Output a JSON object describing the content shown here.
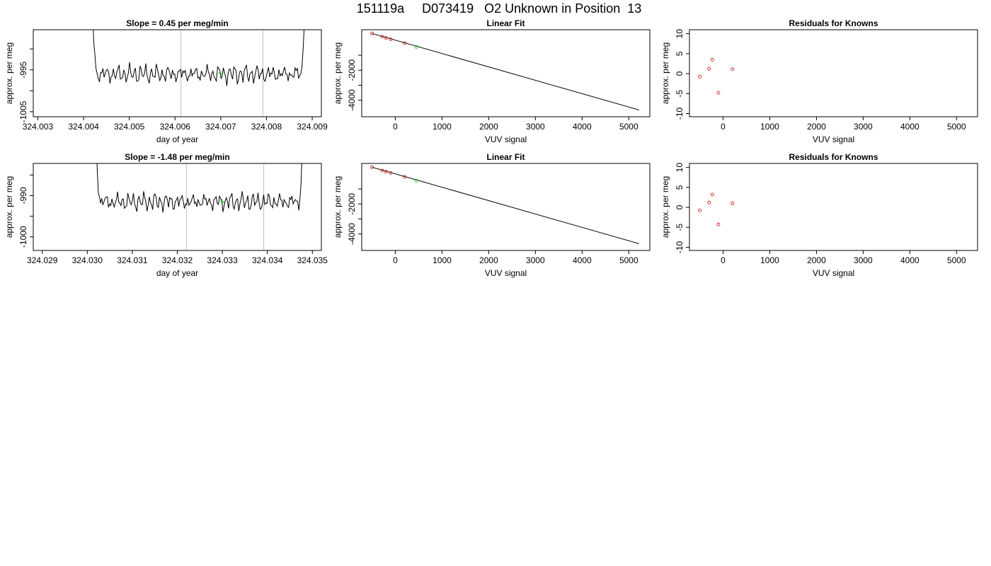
{
  "page_title": "151119a     D073419   O2 Unknown in Position  13",
  "colors": {
    "trace": "#000000",
    "green": "#00cc00",
    "red": "#cc0000",
    "vline": "#bfbfbf"
  },
  "chart_data": [
    {
      "type": "line",
      "title": "Slope =  0.45  per meg/min",
      "xlabel": "day of year",
      "ylabel": "approx. per meg",
      "xlim": [
        324.0029,
        324.0092
      ],
      "ylim": [
        -1006.2,
        -985.4
      ],
      "xticks": [
        324.003,
        324.004,
        324.005,
        324.006,
        324.007,
        324.008,
        324.009
      ],
      "xtick_labels": [
        "324.003",
        "324.004",
        "324.005",
        "324.006",
        "324.007",
        "324.008",
        "324.009"
      ],
      "yticks": [
        -1005,
        -1000,
        -995,
        -990
      ],
      "ytick_labels": [
        "-1005",
        "",
        "-995",
        ""
      ],
      "grid": false,
      "vlines": [
        324.00613,
        324.00792
      ],
      "trace": {
        "x_start": 324.00412,
        "x_end": 324.00893,
        "baseline": -996.0,
        "amplitude": 1.6,
        "x_cut": [
          324.0043,
          324.00875
        ],
        "x_rise": [
          324.00413,
          324.00888
        ]
      },
      "highlight": {
        "x": [
          324.007
        ],
        "y": [
          -995.9
        ]
      }
    },
    {
      "type": "scatter",
      "title": "Linear Fit",
      "xlabel": "VUV signal",
      "ylabel": "approx. per meg",
      "xlim": [
        -720,
        5450
      ],
      "ylim": [
        -5100,
        700
      ],
      "xticks": [
        0,
        1000,
        2000,
        3000,
        4000,
        5000
      ],
      "xtick_labels": [
        "0",
        "1000",
        "2000",
        "3000",
        "4000",
        "5000"
      ],
      "yticks": [
        -4000,
        -3000,
        -2000,
        -1000
      ],
      "ytick_labels": [
        "-4000",
        "",
        "-2000",
        ""
      ],
      "grid": false,
      "fit_line": {
        "x": [
          -500,
          5220
        ],
        "y": [
          450,
          -4650
        ]
      },
      "series": [
        {
          "color": "red",
          "x": [
            -500,
            -280,
            -200,
            -100,
            200
          ],
          "y": [
            450,
            230,
            150,
            60,
            -200
          ]
        },
        {
          "color": "green",
          "x": [
            450
          ],
          "y": [
            -450
          ]
        }
      ]
    },
    {
      "type": "scatter",
      "title": "Residuals for Knowns",
      "xlabel": "VUV signal",
      "ylabel": "approx. per meg",
      "xlim": [
        -720,
        5450
      ],
      "ylim": [
        -10.8,
        11
      ],
      "xticks": [
        0,
        1000,
        2000,
        3000,
        4000,
        5000
      ],
      "xtick_labels": [
        "0",
        "1000",
        "2000",
        "3000",
        "4000",
        "5000"
      ],
      "yticks": [
        -10,
        -5,
        0,
        5,
        10
      ],
      "ytick_labels": [
        "-10",
        "-5",
        "0",
        "5",
        "10"
      ],
      "grid": false,
      "series": [
        {
          "color": "red",
          "x": [
            -500,
            -300,
            -230,
            -100,
            200
          ],
          "y": [
            -0.8,
            1.2,
            3.5,
            -4.8,
            1.1
          ]
        }
      ]
    },
    {
      "type": "line",
      "title": "Slope =  -1.48  per meg/min",
      "xlabel": "day of year",
      "ylabel": "approx. per meg",
      "xlim": [
        324.0288,
        324.0352
      ],
      "ylim": [
        -1003.3,
        -982.2
      ],
      "xticks": [
        324.029,
        324.03,
        324.031,
        324.032,
        324.033,
        324.034,
        324.035
      ],
      "xtick_labels": [
        "324.029",
        "324.030",
        "324.031",
        "324.032",
        "324.033",
        "324.034",
        "324.035"
      ],
      "yticks": [
        -1000,
        -995,
        -990,
        -985
      ],
      "ytick_labels": [
        "-1000",
        "",
        "-990",
        ""
      ],
      "grid": false,
      "vlines": [
        324.0322,
        324.03392
      ],
      "trace": {
        "x_start": 324.03012,
        "x_end": 324.0349,
        "baseline": -991.5,
        "amplitude": 1.6,
        "x_cut": [
          324.0303,
          324.0347
        ],
        "x_rise": [
          324.03013,
          324.03484
        ]
      },
      "highlight": {
        "x": [
          324.033
        ],
        "y": [
          -991.5
        ]
      }
    },
    {
      "type": "scatter",
      "title": "Linear Fit",
      "xlabel": "VUV signal",
      "ylabel": "approx. per meg",
      "xlim": [
        -720,
        5450
      ],
      "ylim": [
        -5100,
        700
      ],
      "xticks": [
        0,
        1000,
        2000,
        3000,
        4000,
        5000
      ],
      "xtick_labels": [
        "0",
        "1000",
        "2000",
        "3000",
        "4000",
        "5000"
      ],
      "yticks": [
        -4000,
        -3000,
        -2000,
        -1000
      ],
      "ytick_labels": [
        "-4000",
        "",
        "-2000",
        ""
      ],
      "grid": false,
      "fit_line": {
        "x": [
          -500,
          5220
        ],
        "y": [
          450,
          -4650
        ]
      },
      "series": [
        {
          "color": "red",
          "x": [
            -500,
            -280,
            -200,
            -100,
            200
          ],
          "y": [
            450,
            230,
            150,
            60,
            -200
          ]
        },
        {
          "color": "green",
          "x": [
            450
          ],
          "y": [
            -450
          ]
        }
      ]
    },
    {
      "type": "scatter",
      "title": "Residuals for Knowns",
      "xlabel": "VUV signal",
      "ylabel": "approx. per meg",
      "xlim": [
        -720,
        5450
      ],
      "ylim": [
        -10.8,
        11
      ],
      "xticks": [
        0,
        1000,
        2000,
        3000,
        4000,
        5000
      ],
      "xtick_labels": [
        "0",
        "1000",
        "2000",
        "3000",
        "4000",
        "5000"
      ],
      "yticks": [
        -10,
        -5,
        0,
        5,
        10
      ],
      "ytick_labels": [
        "-10",
        "-5",
        "0",
        "5",
        "10"
      ],
      "grid": false,
      "series": [
        {
          "color": "red",
          "x": [
            -500,
            -300,
            -230,
            -100,
            200
          ],
          "y": [
            -0.8,
            1.2,
            3.2,
            -4.3,
            1.0
          ]
        }
      ]
    }
  ]
}
